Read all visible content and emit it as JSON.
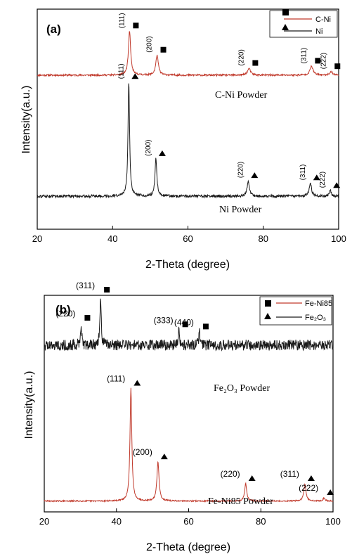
{
  "chart_data": [
    {
      "panel": "(a)",
      "type": "line",
      "xlabel": "2-Theta (degree)",
      "ylabel": "Intensity(a.u.)",
      "xlim": [
        20,
        100
      ],
      "xticks": [
        20,
        40,
        60,
        80,
        100
      ],
      "grid": false,
      "legend_position": "top-right",
      "series": [
        {
          "name": "C-Ni",
          "color": "#c0392b",
          "marker": "square",
          "baseline": 0.7,
          "noise": 0.004,
          "peaks": [
            {
              "x": 44.5,
              "h": 0.2,
              "w": 0.35,
              "label": "(111)"
            },
            {
              "x": 51.8,
              "h": 0.09,
              "w": 0.4,
              "label": "(200)"
            },
            {
              "x": 76.2,
              "h": 0.03,
              "w": 0.5,
              "label": "(220)"
            },
            {
              "x": 92.8,
              "h": 0.04,
              "w": 0.5,
              "label": "(311)"
            },
            {
              "x": 98.0,
              "h": 0.015,
              "w": 0.5,
              "label": "(222)"
            }
          ],
          "annotation": "C-Ni Powder"
        },
        {
          "name": "Ni",
          "color": "#1a1a1a",
          "marker": "triangle",
          "baseline": 0.15,
          "noise": 0.006,
          "peaks": [
            {
              "x": 44.3,
              "h": 0.52,
              "w": 0.25,
              "label": "(111)"
            },
            {
              "x": 51.5,
              "h": 0.17,
              "w": 0.3,
              "label": "(200)"
            },
            {
              "x": 76.0,
              "h": 0.07,
              "w": 0.35,
              "label": "(220)"
            },
            {
              "x": 92.5,
              "h": 0.06,
              "w": 0.35,
              "label": "(311)"
            },
            {
              "x": 97.8,
              "h": 0.025,
              "w": 0.3,
              "label": "(222)"
            }
          ],
          "annotation": "Ni Powder"
        }
      ]
    },
    {
      "panel": "(b)",
      "type": "line",
      "xlabel": "2-Theta (degree)",
      "ylabel": "Intensity(a.u.)",
      "xlim": [
        20,
        100
      ],
      "xticks": [
        20,
        40,
        60,
        80,
        100
      ],
      "grid": false,
      "legend_position": "top-right",
      "series": [
        {
          "name": "Fe-Ni85",
          "color": "#c0392b",
          "marker": "triangle",
          "baseline": 0.05,
          "noise": 0.003,
          "peaks": [
            {
              "x": 44.0,
              "h": 0.52,
              "w": 0.3,
              "label": "(111)"
            },
            {
              "x": 51.5,
              "h": 0.18,
              "w": 0.35,
              "label": "(200)"
            },
            {
              "x": 75.8,
              "h": 0.08,
              "w": 0.35,
              "label": "(220)"
            },
            {
              "x": 92.2,
              "h": 0.08,
              "w": 0.35,
              "label": "(311)"
            },
            {
              "x": 97.5,
              "h": 0.015,
              "w": 0.3,
              "label": "(222)"
            }
          ],
          "annotation": "Fe-Ni85 Powder"
        },
        {
          "name": "Fe₂O₃",
          "color": "#1a1a1a",
          "marker": "square",
          "baseline": 0.77,
          "noise": 0.025,
          "peaks": [
            {
              "x": 30.2,
              "h": 0.1,
              "w": 0.2,
              "label": "(220)"
            },
            {
              "x": 35.6,
              "h": 0.23,
              "w": 0.2,
              "label": "(311)"
            },
            {
              "x": 57.3,
              "h": 0.07,
              "w": 0.2,
              "label": "(333)"
            },
            {
              "x": 63.0,
              "h": 0.06,
              "w": 0.2,
              "label": "(440)"
            }
          ],
          "annotation": "Fe₂O₃ Powder"
        }
      ]
    }
  ]
}
